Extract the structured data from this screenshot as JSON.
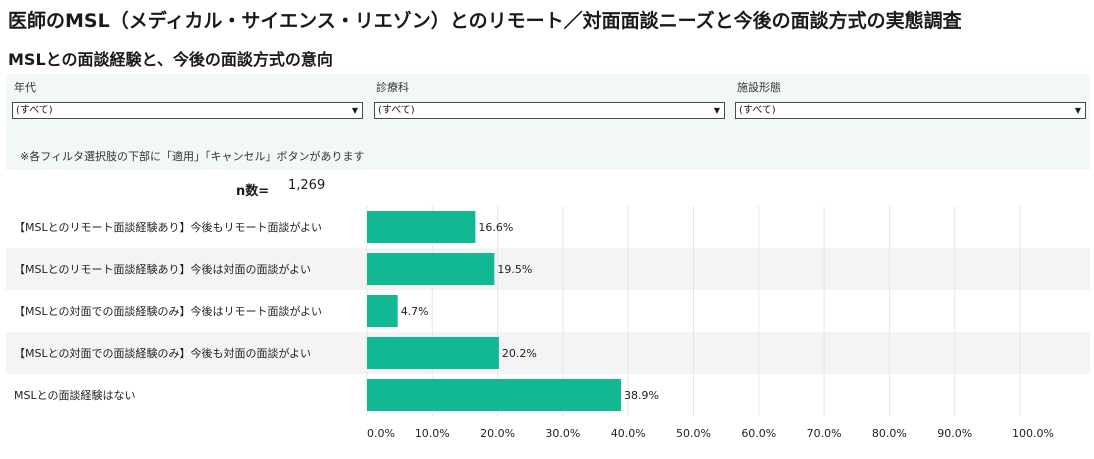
{
  "header": {
    "title": "医師のMSL（メディカル・サイエンス・リエゾン）とのリモート／対面面談ニーズと今後の面談方式の実態調査",
    "subtitle": "MSLとの面談経験と、今後の面談方式の意向"
  },
  "filters": {
    "items": [
      {
        "label": "年代",
        "value": "(すべて)"
      },
      {
        "label": "診療科",
        "value": "(すべて)"
      },
      {
        "label": "施設形態",
        "value": "(すべて)"
      }
    ],
    "note": "※各フィルタ選択肢の下部に「適用」「キャンセル」ボタンがあります"
  },
  "sample": {
    "label": "n数=",
    "value": "1,269"
  },
  "colors": {
    "bar": "#12b894",
    "band": "#f4f4f4",
    "grid": "#e6e6e6",
    "filter_bg": "#f2f8f7"
  },
  "chart_data": {
    "type": "bar",
    "orientation": "horizontal",
    "categories": [
      "【MSLとのリモート面談経験あり】今後もリモート面談がよい",
      "【MSLとのリモート面談経験あり】今後は対面の面談がよい",
      "【MSLとの対面での面談経験のみ】今後はリモート面談がよい",
      "【MSLとの対面での面談経験のみ】今後も対面の面談がよい",
      "MSLとの面談経験はない"
    ],
    "values": [
      16.6,
      19.5,
      4.7,
      20.2,
      38.9
    ],
    "value_labels": [
      "16.6%",
      "19.5%",
      "4.7%",
      "20.2%",
      "38.9%"
    ],
    "xlim": [
      0,
      100
    ],
    "ticks": [
      0,
      10,
      20,
      30,
      40,
      50,
      60,
      70,
      80,
      90,
      100
    ],
    "tick_labels": [
      "0.0%",
      "10.0%",
      "20.0%",
      "30.0%",
      "40.0%",
      "50.0%",
      "60.0%",
      "70.0%",
      "80.0%",
      "90.0%",
      "100.0%"
    ],
    "grid": true
  }
}
